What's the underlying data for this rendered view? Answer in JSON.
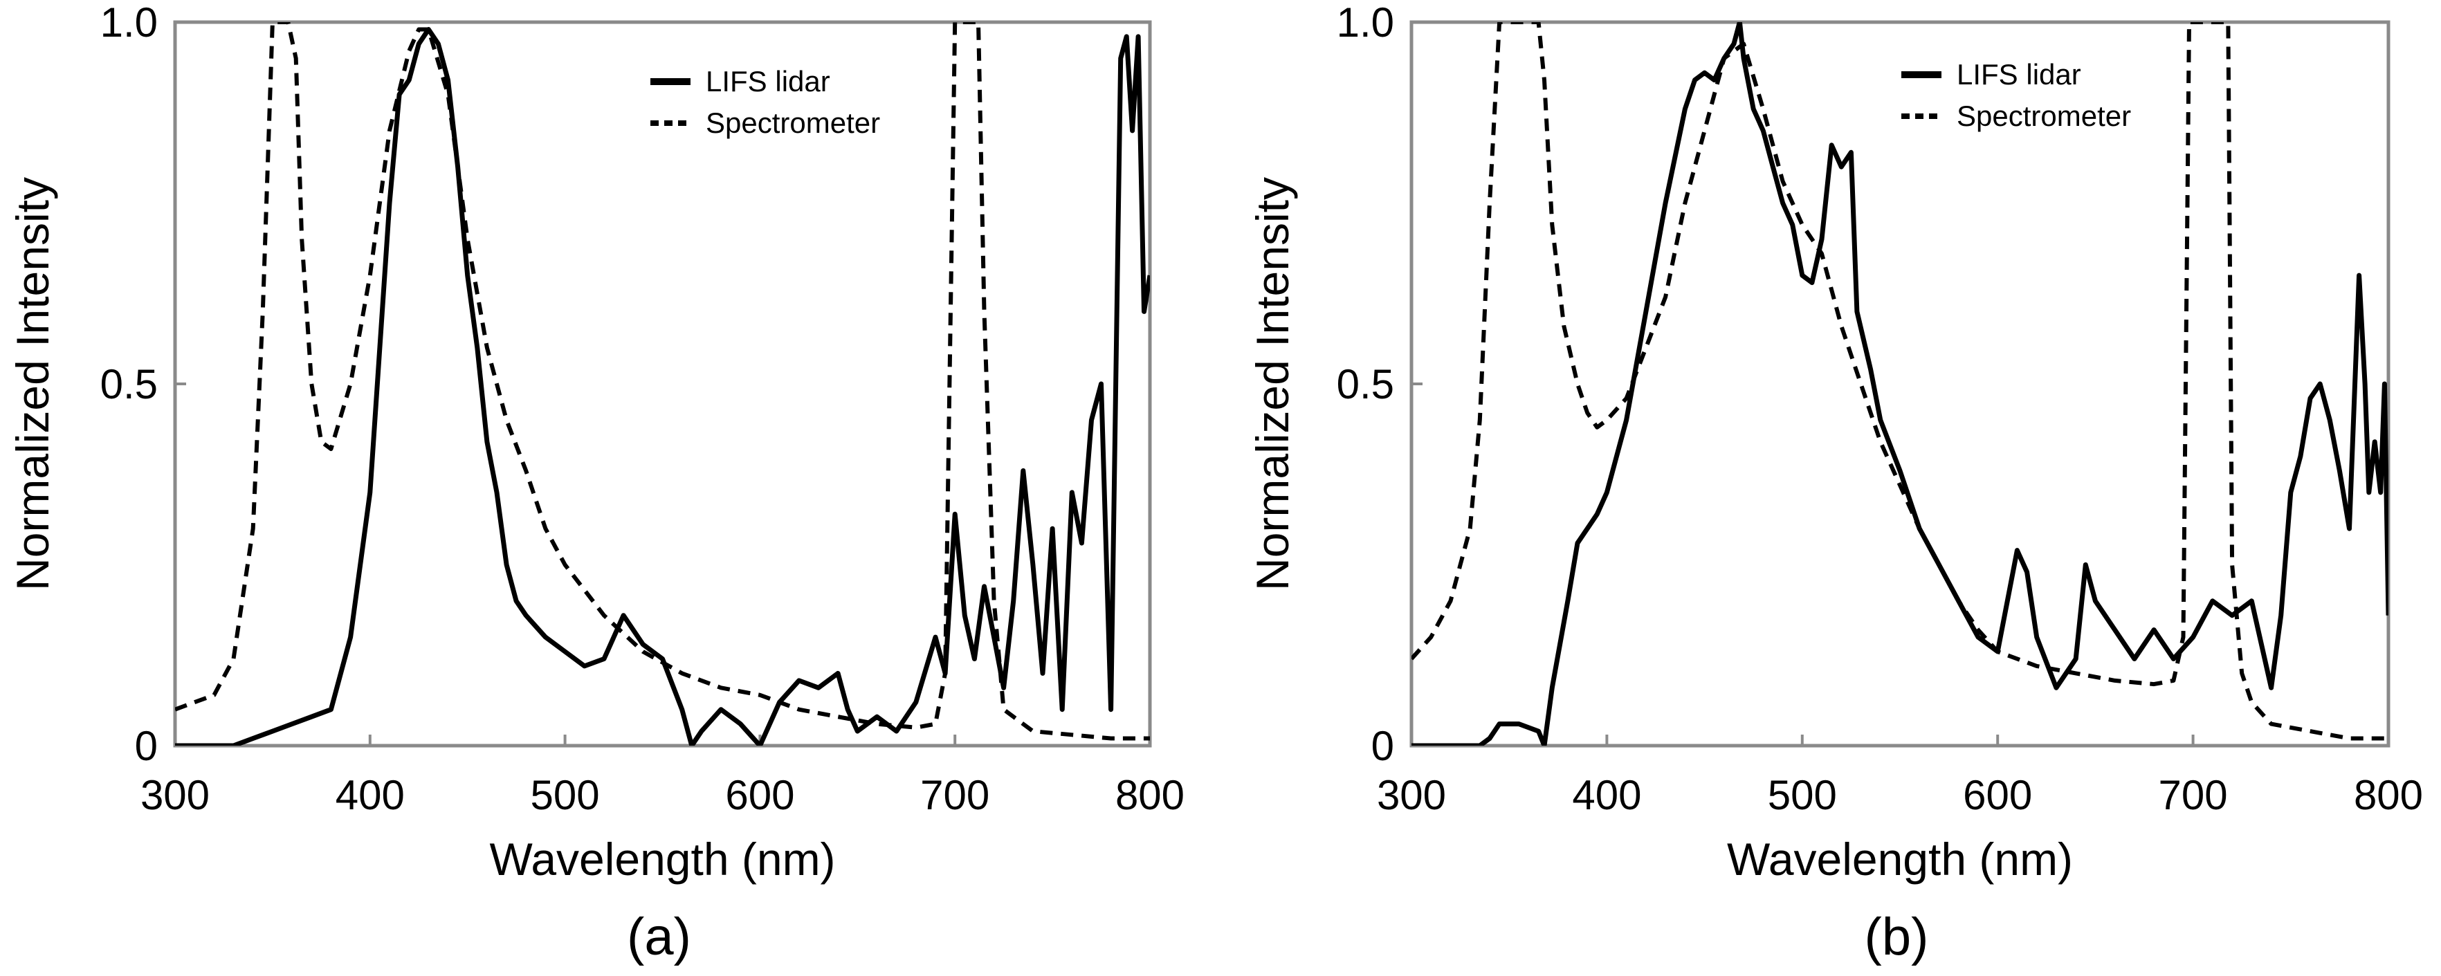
{
  "chart_data": [
    {
      "type": "line",
      "panel_label": "(a)",
      "xlabel": "Wavelength (nm)",
      "ylabel": "Normalized Intensity",
      "xlim": [
        300,
        800
      ],
      "ylim": [
        0,
        1.0
      ],
      "xticks": [
        300,
        400,
        500,
        600,
        700,
        800
      ],
      "xtick_labels": [
        "300",
        "400",
        "500",
        "600",
        "700",
        "800"
      ],
      "yticks": [
        0,
        0.5,
        1.0
      ],
      "ytick_labels": [
        "0",
        "0.5",
        "1.0"
      ],
      "legend_position": "top-right",
      "series": [
        {
          "name": "LIFS lidar",
          "style": "solid",
          "points": [
            [
              300,
              0.0
            ],
            [
              310,
              0.0
            ],
            [
              320,
              0.0
            ],
            [
              330,
              0.0
            ],
            [
              340,
              0.01
            ],
            [
              350,
              0.02
            ],
            [
              360,
              0.03
            ],
            [
              370,
              0.04
            ],
            [
              380,
              0.05
            ],
            [
              390,
              0.15
            ],
            [
              400,
              0.35
            ],
            [
              405,
              0.55
            ],
            [
              410,
              0.75
            ],
            [
              415,
              0.9
            ],
            [
              420,
              0.92
            ],
            [
              425,
              0.97
            ],
            [
              430,
              0.99
            ],
            [
              435,
              0.97
            ],
            [
              440,
              0.92
            ],
            [
              445,
              0.8
            ],
            [
              450,
              0.65
            ],
            [
              455,
              0.55
            ],
            [
              460,
              0.42
            ],
            [
              465,
              0.35
            ],
            [
              470,
              0.25
            ],
            [
              475,
              0.2
            ],
            [
              480,
              0.18
            ],
            [
              490,
              0.15
            ],
            [
              500,
              0.13
            ],
            [
              510,
              0.11
            ],
            [
              520,
              0.12
            ],
            [
              530,
              0.18
            ],
            [
              540,
              0.14
            ],
            [
              550,
              0.12
            ],
            [
              560,
              0.05
            ],
            [
              565,
              0.0
            ],
            [
              570,
              0.02
            ],
            [
              580,
              0.05
            ],
            [
              590,
              0.03
            ],
            [
              600,
              0.0
            ],
            [
              610,
              0.06
            ],
            [
              620,
              0.09
            ],
            [
              630,
              0.08
            ],
            [
              640,
              0.1
            ],
            [
              645,
              0.05
            ],
            [
              650,
              0.02
            ],
            [
              660,
              0.04
            ],
            [
              670,
              0.02
            ],
            [
              680,
              0.06
            ],
            [
              690,
              0.15
            ],
            [
              695,
              0.1
            ],
            [
              700,
              0.32
            ],
            [
              705,
              0.18
            ],
            [
              710,
              0.12
            ],
            [
              715,
              0.22
            ],
            [
              720,
              0.15
            ],
            [
              725,
              0.08
            ],
            [
              730,
              0.2
            ],
            [
              735,
              0.38
            ],
            [
              740,
              0.25
            ],
            [
              745,
              0.1
            ],
            [
              750,
              0.3
            ],
            [
              755,
              0.05
            ],
            [
              760,
              0.35
            ],
            [
              765,
              0.28
            ],
            [
              770,
              0.45
            ],
            [
              775,
              0.5
            ],
            [
              780,
              0.05
            ],
            [
              785,
              0.95
            ],
            [
              788,
              0.98
            ],
            [
              791,
              0.85
            ],
            [
              794,
              0.98
            ],
            [
              797,
              0.6
            ],
            [
              800,
              0.65
            ]
          ]
        },
        {
          "name": "Spectrometer",
          "style": "dashed",
          "points": [
            [
              300,
              0.05
            ],
            [
              310,
              0.06
            ],
            [
              320,
              0.07
            ],
            [
              330,
              0.12
            ],
            [
              340,
              0.3
            ],
            [
              345,
              0.6
            ],
            [
              350,
              1.0
            ],
            [
              358,
              1.0
            ],
            [
              362,
              0.95
            ],
            [
              365,
              0.7
            ],
            [
              370,
              0.5
            ],
            [
              375,
              0.42
            ],
            [
              380,
              0.41
            ],
            [
              390,
              0.5
            ],
            [
              400,
              0.65
            ],
            [
              410,
              0.85
            ],
            [
              420,
              0.96
            ],
            [
              425,
              0.99
            ],
            [
              430,
              0.99
            ],
            [
              440,
              0.9
            ],
            [
              450,
              0.7
            ],
            [
              460,
              0.55
            ],
            [
              470,
              0.45
            ],
            [
              480,
              0.38
            ],
            [
              490,
              0.3
            ],
            [
              500,
              0.25
            ],
            [
              520,
              0.18
            ],
            [
              540,
              0.13
            ],
            [
              560,
              0.1
            ],
            [
              580,
              0.08
            ],
            [
              600,
              0.07
            ],
            [
              620,
              0.05
            ],
            [
              640,
              0.04
            ],
            [
              660,
              0.03
            ],
            [
              680,
              0.025
            ],
            [
              690,
              0.03
            ],
            [
              695,
              0.1
            ],
            [
              700,
              1.0
            ],
            [
              712,
              1.0
            ],
            [
              715,
              0.6
            ],
            [
              720,
              0.2
            ],
            [
              725,
              0.05
            ],
            [
              740,
              0.02
            ],
            [
              760,
              0.015
            ],
            [
              780,
              0.01
            ],
            [
              800,
              0.01
            ]
          ]
        }
      ]
    },
    {
      "type": "line",
      "panel_label": "(b)",
      "xlabel": "Wavelength (nm)",
      "ylabel": "Normalized Intensity",
      "xlim": [
        300,
        800
      ],
      "ylim": [
        0,
        1.0
      ],
      "xticks": [
        300,
        400,
        500,
        600,
        700,
        800
      ],
      "xtick_labels": [
        "300",
        "400",
        "500",
        "600",
        "700",
        "800"
      ],
      "yticks": [
        0,
        0.5,
        1.0
      ],
      "ytick_labels": [
        "0",
        "0.5",
        "1.0"
      ],
      "legend_position": "top-right",
      "series": [
        {
          "name": "LIFS lidar",
          "style": "solid",
          "points": [
            [
              300,
              0.0
            ],
            [
              320,
              0.0
            ],
            [
              335,
              0.0
            ],
            [
              340,
              0.01
            ],
            [
              345,
              0.03
            ],
            [
              355,
              0.03
            ],
            [
              365,
              0.02
            ],
            [
              368,
              0.0
            ],
            [
              372,
              0.08
            ],
            [
              380,
              0.2
            ],
            [
              385,
              0.28
            ],
            [
              390,
              0.3
            ],
            [
              395,
              0.32
            ],
            [
              400,
              0.35
            ],
            [
              410,
              0.45
            ],
            [
              420,
              0.6
            ],
            [
              430,
              0.75
            ],
            [
              440,
              0.88
            ],
            [
              445,
              0.92
            ],
            [
              450,
              0.93
            ],
            [
              455,
              0.92
            ],
            [
              460,
              0.95
            ],
            [
              465,
              0.97
            ],
            [
              468,
              1.0
            ],
            [
              470,
              0.95
            ],
            [
              475,
              0.88
            ],
            [
              480,
              0.85
            ],
            [
              485,
              0.8
            ],
            [
              490,
              0.75
            ],
            [
              495,
              0.72
            ],
            [
              500,
              0.65
            ],
            [
              505,
              0.64
            ],
            [
              510,
              0.7
            ],
            [
              515,
              0.83
            ],
            [
              520,
              0.8
            ],
            [
              525,
              0.82
            ],
            [
              528,
              0.6
            ],
            [
              535,
              0.52
            ],
            [
              540,
              0.45
            ],
            [
              550,
              0.38
            ],
            [
              560,
              0.3
            ],
            [
              570,
              0.25
            ],
            [
              580,
              0.2
            ],
            [
              590,
              0.15
            ],
            [
              600,
              0.13
            ],
            [
              605,
              0.2
            ],
            [
              610,
              0.27
            ],
            [
              615,
              0.24
            ],
            [
              620,
              0.15
            ],
            [
              630,
              0.08
            ],
            [
              640,
              0.12
            ],
            [
              645,
              0.25
            ],
            [
              650,
              0.2
            ],
            [
              660,
              0.16
            ],
            [
              670,
              0.12
            ],
            [
              680,
              0.16
            ],
            [
              690,
              0.12
            ],
            [
              700,
              0.15
            ],
            [
              710,
              0.2
            ],
            [
              720,
              0.18
            ],
            [
              730,
              0.2
            ],
            [
              740,
              0.08
            ],
            [
              745,
              0.18
            ],
            [
              750,
              0.35
            ],
            [
              755,
              0.4
            ],
            [
              760,
              0.48
            ],
            [
              765,
              0.5
            ],
            [
              770,
              0.45
            ],
            [
              775,
              0.38
            ],
            [
              780,
              0.3
            ],
            [
              785,
              0.65
            ],
            [
              788,
              0.5
            ],
            [
              790,
              0.35
            ],
            [
              793,
              0.42
            ],
            [
              796,
              0.35
            ],
            [
              798,
              0.5
            ],
            [
              800,
              0.18
            ]
          ]
        },
        {
          "name": "Spectrometer",
          "style": "dashed",
          "points": [
            [
              300,
              0.12
            ],
            [
              310,
              0.15
            ],
            [
              320,
              0.2
            ],
            [
              330,
              0.3
            ],
            [
              335,
              0.45
            ],
            [
              340,
              0.75
            ],
            [
              345,
              1.0
            ],
            [
              365,
              1.0
            ],
            [
              368,
              0.92
            ],
            [
              372,
              0.72
            ],
            [
              378,
              0.58
            ],
            [
              385,
              0.5
            ],
            [
              390,
              0.46
            ],
            [
              395,
              0.44
            ],
            [
              400,
              0.45
            ],
            [
              410,
              0.48
            ],
            [
              420,
              0.55
            ],
            [
              430,
              0.62
            ],
            [
              440,
              0.75
            ],
            [
              450,
              0.85
            ],
            [
              460,
              0.95
            ],
            [
              470,
              0.97
            ],
            [
              480,
              0.88
            ],
            [
              490,
              0.78
            ],
            [
              500,
              0.72
            ],
            [
              510,
              0.68
            ],
            [
              520,
              0.58
            ],
            [
              530,
              0.5
            ],
            [
              540,
              0.42
            ],
            [
              550,
              0.36
            ],
            [
              560,
              0.3
            ],
            [
              570,
              0.25
            ],
            [
              580,
              0.2
            ],
            [
              590,
              0.16
            ],
            [
              600,
              0.13
            ],
            [
              620,
              0.11
            ],
            [
              640,
              0.1
            ],
            [
              660,
              0.09
            ],
            [
              680,
              0.085
            ],
            [
              690,
              0.09
            ],
            [
              695,
              0.15
            ],
            [
              698,
              1.0
            ],
            [
              718,
              1.0
            ],
            [
              720,
              0.25
            ],
            [
              725,
              0.1
            ],
            [
              730,
              0.06
            ],
            [
              740,
              0.03
            ],
            [
              760,
              0.02
            ],
            [
              780,
              0.01
            ],
            [
              800,
              0.01
            ]
          ]
        }
      ]
    }
  ]
}
